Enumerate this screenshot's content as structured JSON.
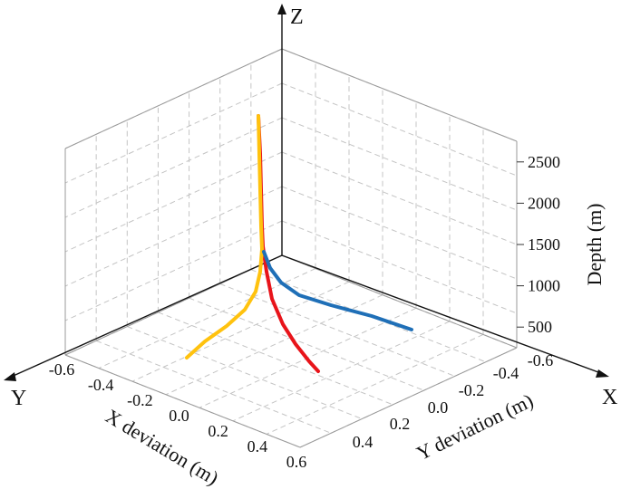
{
  "chart_data": {
    "type": "line",
    "projection": "3d",
    "title": "",
    "axes": {
      "x": {
        "letter": "X",
        "label": "X deviation (m)",
        "ticks": [
          "-0.6",
          "-0.4",
          "-0.2",
          "0.0",
          "0.2",
          "0.4",
          "0.6"
        ],
        "range": [
          -0.6,
          0.6
        ]
      },
      "y": {
        "letter": "Y",
        "label": "Y deviation (m)",
        "ticks": [
          "-0.6",
          "-0.4",
          "-0.2",
          "0.0",
          "0.2",
          "0.4"
        ],
        "range": [
          -0.6,
          0.4
        ]
      },
      "z": {
        "letter": "Z",
        "label": "Depth (m)",
        "ticks": [
          "500",
          "1000",
          "1500",
          "2000",
          "2500"
        ]
      }
    },
    "grid": true,
    "legend": "none",
    "series": [
      {
        "color": "#e8141a",
        "points": [
          [
            0.0,
            -0.12,
            2700
          ],
          [
            0.01,
            -0.12,
            2350
          ],
          [
            0.02,
            -0.12,
            2000
          ],
          [
            0.03,
            -0.12,
            1650
          ],
          [
            0.04,
            -0.12,
            1430
          ],
          [
            0.06,
            -0.12,
            1260
          ],
          [
            0.1,
            -0.12,
            1100
          ],
          [
            0.16,
            -0.12,
            960
          ],
          [
            0.23,
            -0.12,
            840
          ],
          [
            0.3,
            -0.12,
            740
          ],
          [
            0.35,
            -0.12,
            680
          ]
        ]
      },
      {
        "color": "#ffc20e",
        "points": [
          [
            0.0,
            -0.12,
            2700
          ],
          [
            0.0,
            -0.12,
            2350
          ],
          [
            0.0,
            -0.11,
            2000
          ],
          [
            0.0,
            -0.1,
            1650
          ],
          [
            0.0,
            -0.09,
            1450
          ],
          [
            0.0,
            -0.06,
            1280
          ],
          [
            0.0,
            -0.02,
            1130
          ],
          [
            0.0,
            0.04,
            980
          ],
          [
            0.0,
            0.12,
            840
          ],
          [
            0.0,
            0.19,
            740
          ],
          [
            0.0,
            0.23,
            690
          ]
        ]
      },
      {
        "color": "#1f6fb7",
        "points": [
          [
            0.0,
            -0.14,
            1420
          ],
          [
            0.0,
            -0.2,
            1310
          ],
          [
            0.0,
            -0.28,
            1200
          ],
          [
            0.0,
            -0.36,
            1120
          ],
          [
            0.0,
            -0.44,
            1070
          ],
          [
            0.0,
            -0.52,
            1030
          ],
          [
            0.0,
            -0.58,
            1000
          ]
        ]
      }
    ]
  }
}
